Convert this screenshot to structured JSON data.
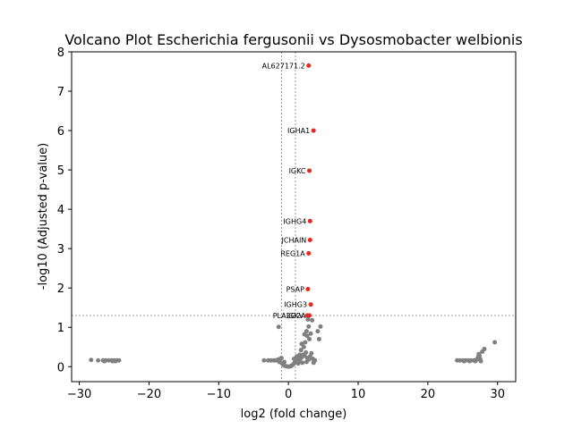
{
  "chart_data": {
    "type": "scatter",
    "title": "Volcano Plot Escherichia fergusonii vs Dysosmobacter welbionis",
    "xlabel": "log2 (fold change)",
    "ylabel": "-log10 (Adjusted p-value)",
    "xlim": [
      -31.1,
      32.6
    ],
    "ylim": [
      -0.38,
      8.0
    ],
    "xticks": [
      -30,
      -20,
      -10,
      0,
      10,
      20,
      30
    ],
    "yticks": [
      0,
      1,
      2,
      3,
      4,
      5,
      6,
      7,
      8
    ],
    "xtick_labels": [
      "−30",
      "−20",
      "−10",
      "0",
      "10",
      "20",
      "30"
    ],
    "ytick_labels": [
      "0",
      "1",
      "2",
      "3",
      "4",
      "5",
      "6",
      "7",
      "8"
    ],
    "grid": false,
    "thresholds": {
      "vertical": [
        -1,
        1
      ],
      "horizontal": 1.3
    },
    "colors": {
      "significant": "#e8271f",
      "nonsignificant": "#808080",
      "threshold": "#808080"
    },
    "significant_points": [
      {
        "label": "AL627171.2",
        "x": 2.9,
        "y": 7.65
      },
      {
        "label": "IGHA1",
        "x": 3.6,
        "y": 6.0
      },
      {
        "label": "IGKC",
        "x": 3.0,
        "y": 4.98
      },
      {
        "label": "IGHG4",
        "x": 3.1,
        "y": 3.7
      },
      {
        "label": "JCHAIN",
        "x": 3.1,
        "y": 3.22
      },
      {
        "label": "REG1A",
        "x": 2.9,
        "y": 2.88
      },
      {
        "label": "PSAP",
        "x": 2.8,
        "y": 1.97
      },
      {
        "label": "IGHG3",
        "x": 3.2,
        "y": 1.58
      },
      {
        "label": "PLA2G2A",
        "x": 3.0,
        "y": 1.3
      },
      {
        "label": "IGKV",
        "x": 2.7,
        "y": 1.3
      }
    ],
    "nonsignificant_points": [
      {
        "x": -28.3,
        "y": 0.17
      },
      {
        "x": -27.3,
        "y": 0.16
      },
      {
        "x": -26.6,
        "y": 0.16
      },
      {
        "x": -26.2,
        "y": 0.16
      },
      {
        "x": -25.8,
        "y": 0.16
      },
      {
        "x": -25.4,
        "y": 0.16
      },
      {
        "x": -25.0,
        "y": 0.16
      },
      {
        "x": -24.6,
        "y": 0.16
      },
      {
        "x": -24.3,
        "y": 0.16
      },
      {
        "x": -26.4,
        "y": 0.14
      },
      {
        "x": -25.2,
        "y": 0.14
      },
      {
        "x": -24.8,
        "y": 0.14
      },
      {
        "x": -3.5,
        "y": 0.16
      },
      {
        "x": -2.9,
        "y": 0.16
      },
      {
        "x": -2.5,
        "y": 0.16
      },
      {
        "x": -2.1,
        "y": 0.16
      },
      {
        "x": -1.8,
        "y": 0.16
      },
      {
        "x": -1.5,
        "y": 0.18
      },
      {
        "x": -1.2,
        "y": 0.2
      },
      {
        "x": -1.0,
        "y": 0.22
      },
      {
        "x": -1.3,
        "y": 0.12
      },
      {
        "x": -0.9,
        "y": 0.08
      },
      {
        "x": -0.7,
        "y": 0.04
      },
      {
        "x": -0.5,
        "y": 0.02
      },
      {
        "x": -0.3,
        "y": 0.01
      },
      {
        "x": 0.0,
        "y": 0.0
      },
      {
        "x": 0.3,
        "y": 0.01
      },
      {
        "x": 0.5,
        "y": 0.03
      },
      {
        "x": 0.7,
        "y": 0.06
      },
      {
        "x": 0.9,
        "y": 0.1
      },
      {
        "x": 1.1,
        "y": 0.14
      },
      {
        "x": 1.3,
        "y": 0.18
      },
      {
        "x": 1.5,
        "y": 0.16
      },
      {
        "x": 1.7,
        "y": 0.2
      },
      {
        "x": 1.9,
        "y": 0.24
      },
      {
        "x": 2.1,
        "y": 0.3
      },
      {
        "x": 2.3,
        "y": 0.28
      },
      {
        "x": 2.5,
        "y": 0.36
      },
      {
        "x": 2.7,
        "y": 0.22
      },
      {
        "x": 2.9,
        "y": 0.18
      },
      {
        "x": 3.1,
        "y": 0.26
      },
      {
        "x": 3.3,
        "y": 0.34
      },
      {
        "x": 3.5,
        "y": 0.2
      },
      {
        "x": 1.8,
        "y": 0.42
      },
      {
        "x": 2.2,
        "y": 0.5
      },
      {
        "x": 2.4,
        "y": 0.62
      },
      {
        "x": 1.9,
        "y": 0.58
      },
      {
        "x": 2.6,
        "y": 0.9
      },
      {
        "x": 2.9,
        "y": 1.02
      },
      {
        "x": 2.7,
        "y": 0.78
      },
      {
        "x": 3.2,
        "y": 0.84
      },
      {
        "x": 3.0,
        "y": 0.7
      },
      {
        "x": 2.3,
        "y": 0.82
      },
      {
        "x": 4.2,
        "y": 0.9
      },
      {
        "x": 4.6,
        "y": 1.02
      },
      {
        "x": 4.4,
        "y": 0.7
      },
      {
        "x": -1.4,
        "y": 1.01
      },
      {
        "x": 3.4,
        "y": 1.18
      },
      {
        "x": 2.8,
        "y": 1.2
      },
      {
        "x": 1.6,
        "y": 0.3
      },
      {
        "x": 2.0,
        "y": 0.1
      },
      {
        "x": 2.6,
        "y": 0.12
      },
      {
        "x": 3.6,
        "y": 0.1
      },
      {
        "x": 3.8,
        "y": 0.16
      },
      {
        "x": 0.8,
        "y": 0.2
      },
      {
        "x": 1.2,
        "y": 0.26
      },
      {
        "x": 1.4,
        "y": 0.08
      },
      {
        "x": -0.6,
        "y": 0.12
      },
      {
        "x": 24.2,
        "y": 0.16
      },
      {
        "x": 24.6,
        "y": 0.16
      },
      {
        "x": 25.0,
        "y": 0.16
      },
      {
        "x": 25.4,
        "y": 0.16
      },
      {
        "x": 25.8,
        "y": 0.16
      },
      {
        "x": 26.2,
        "y": 0.16
      },
      {
        "x": 26.6,
        "y": 0.16
      },
      {
        "x": 27.0,
        "y": 0.18
      },
      {
        "x": 27.2,
        "y": 0.24
      },
      {
        "x": 27.3,
        "y": 0.32
      },
      {
        "x": 27.4,
        "y": 0.28
      },
      {
        "x": 27.5,
        "y": 0.2
      },
      {
        "x": 27.6,
        "y": 0.14
      },
      {
        "x": 27.8,
        "y": 0.38
      },
      {
        "x": 28.1,
        "y": 0.45
      },
      {
        "x": 29.6,
        "y": 0.62
      },
      {
        "x": 25.2,
        "y": 0.14
      },
      {
        "x": 26.0,
        "y": 0.14
      },
      {
        "x": 26.8,
        "y": 0.14
      }
    ]
  }
}
